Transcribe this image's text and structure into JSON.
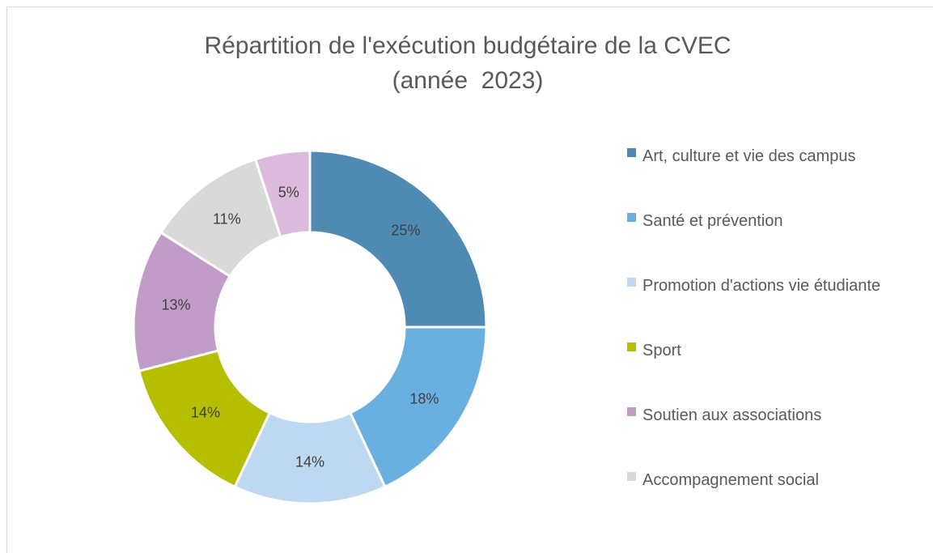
{
  "chart_data": {
    "type": "donut",
    "title": "Répartition de l'exécution budgétaire de la CVEC",
    "subtitle": "(année  2023)",
    "categories": [
      "Art, culture et vie des campus",
      "Santé et prévention",
      "Promotion d'actions vie étudiante",
      "Sport",
      "Soutien aux associations",
      "Accompagnement social",
      null
    ],
    "values": [
      25,
      18,
      14,
      14,
      13,
      11,
      5
    ],
    "value_labels": [
      "25%",
      "18%",
      "14%",
      "14%",
      "13%",
      "11%",
      "5%"
    ],
    "colors": [
      "#4f8ab3",
      "#69b0e1",
      "#bdd8f1",
      "#b5bf00",
      "#c29cc9",
      "#d9d9d9",
      "#dbbade"
    ],
    "legend": "right"
  }
}
